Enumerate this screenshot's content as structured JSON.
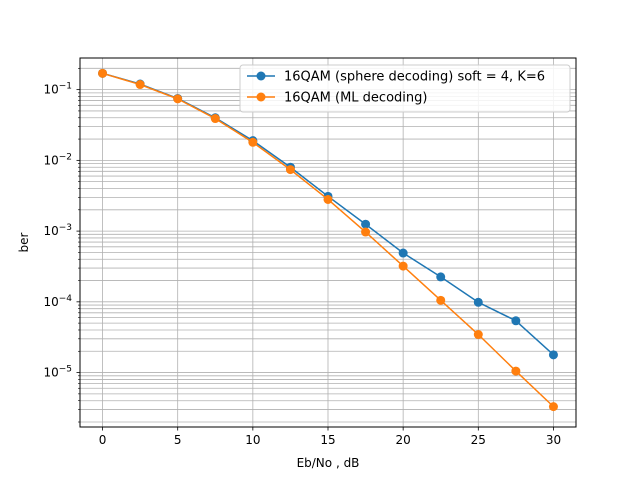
{
  "chart_data": {
    "type": "line",
    "title": "",
    "xlabel": "Eb/No , dB",
    "ylabel": "ber",
    "xlim": [
      -1.5,
      31.5
    ],
    "ylim": [
      1.7e-06,
      0.28
    ],
    "yscale": "log",
    "grid": {
      "major": true,
      "minor": true
    },
    "legend_position": "top-right",
    "x_ticks": [
      0,
      5,
      10,
      15,
      20,
      25,
      30
    ],
    "x_tick_labels": [
      "0",
      "5",
      "10",
      "15",
      "20",
      "25",
      "30"
    ],
    "y_ticks": [
      1e-05,
      0.0001,
      0.001,
      0.01,
      0.1
    ],
    "y_tick_labels": [
      {
        "base": "10",
        "exp": "−5"
      },
      {
        "base": "10",
        "exp": "−4"
      },
      {
        "base": "10",
        "exp": "−3"
      },
      {
        "base": "10",
        "exp": "−2"
      },
      {
        "base": "10",
        "exp": "−1"
      }
    ],
    "x": [
      0,
      2.5,
      5,
      7.5,
      10,
      12.5,
      15,
      17.5,
      20,
      22.5,
      25,
      27.5,
      30
    ],
    "series": [
      {
        "name": "16QAM (sphere decoding) soft = 4, K=6",
        "color": "#1f77b4",
        "values": [
          0.17,
          0.12,
          0.075,
          0.04,
          0.019,
          0.008,
          0.0031,
          0.00125,
          0.00049,
          0.000225,
          9.85e-05,
          5.4e-05,
          1.78e-05
        ]
      },
      {
        "name": "16QAM (ML decoding)",
        "color": "#ff7f0e",
        "values": [
          0.17,
          0.118,
          0.074,
          0.039,
          0.018,
          0.0074,
          0.0028,
          0.00097,
          0.00032,
          0.000105,
          3.45e-05,
          1.05e-05,
          3.3e-06
        ]
      }
    ]
  }
}
